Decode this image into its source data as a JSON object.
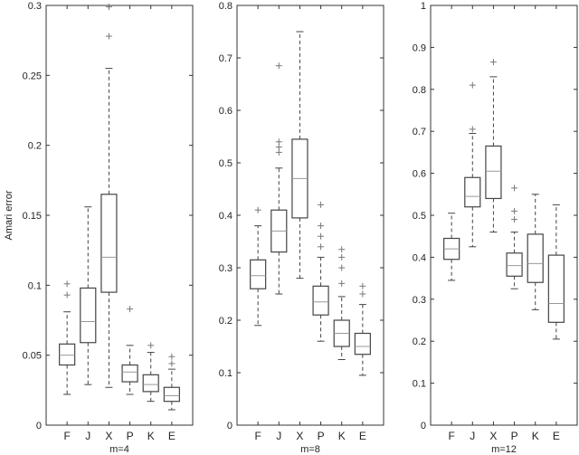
{
  "chart_data": [
    {
      "type": "box",
      "xlabel": "m=4",
      "ylabel": "Amari error",
      "ylim": [
        0,
        0.3
      ],
      "yticks": [
        "0",
        "0.05",
        "0.1",
        "0.15",
        "0.2",
        "0.25",
        "0.3"
      ],
      "categories": [
        "F",
        "J",
        "X",
        "P",
        "K",
        "E"
      ],
      "boxes": [
        {
          "low": 0.022,
          "q1": 0.043,
          "median": 0.05,
          "q3": 0.058,
          "high": 0.081,
          "outliers": [
            0.093,
            0.101
          ]
        },
        {
          "low": 0.029,
          "q1": 0.059,
          "median": 0.074,
          "q3": 0.098,
          "high": 0.156,
          "outliers": []
        },
        {
          "low": 0.027,
          "q1": 0.095,
          "median": 0.12,
          "q3": 0.165,
          "high": 0.255,
          "outliers": [
            0.278,
            0.299
          ]
        },
        {
          "low": 0.022,
          "q1": 0.031,
          "median": 0.038,
          "q3": 0.043,
          "high": 0.057,
          "outliers": [
            0.083
          ]
        },
        {
          "low": 0.017,
          "q1": 0.024,
          "median": 0.029,
          "q3": 0.036,
          "high": 0.052,
          "outliers": [
            0.057
          ]
        },
        {
          "low": 0.011,
          "q1": 0.017,
          "median": 0.021,
          "q3": 0.027,
          "high": 0.04,
          "outliers": [
            0.044,
            0.049
          ]
        }
      ]
    },
    {
      "type": "box",
      "xlabel": "m=8",
      "ylabel": "",
      "ylim": [
        0,
        0.8
      ],
      "yticks": [
        "0",
        "0.1",
        "0.2",
        "0.3",
        "0.4",
        "0.5",
        "0.6",
        "0.7",
        "0.8"
      ],
      "categories": [
        "F",
        "J",
        "X",
        "P",
        "K",
        "E"
      ],
      "boxes": [
        {
          "low": 0.19,
          "q1": 0.26,
          "median": 0.285,
          "q3": 0.315,
          "high": 0.38,
          "outliers": [
            0.41
          ]
        },
        {
          "low": 0.25,
          "q1": 0.33,
          "median": 0.37,
          "q3": 0.41,
          "high": 0.49,
          "outliers": [
            0.52,
            0.53,
            0.54,
            0.685
          ]
        },
        {
          "low": 0.28,
          "q1": 0.395,
          "median": 0.47,
          "q3": 0.545,
          "high": 0.75,
          "outliers": []
        },
        {
          "low": 0.16,
          "q1": 0.21,
          "median": 0.235,
          "q3": 0.265,
          "high": 0.32,
          "outliers": [
            0.34,
            0.36,
            0.38,
            0.42
          ]
        },
        {
          "low": 0.125,
          "q1": 0.15,
          "median": 0.175,
          "q3": 0.2,
          "high": 0.245,
          "outliers": [
            0.27,
            0.3,
            0.32,
            0.335
          ]
        },
        {
          "low": 0.095,
          "q1": 0.135,
          "median": 0.15,
          "q3": 0.175,
          "high": 0.23,
          "outliers": [
            0.25,
            0.265
          ]
        }
      ]
    },
    {
      "type": "box",
      "xlabel": "m=12",
      "ylabel": "",
      "ylim": [
        0,
        1
      ],
      "yticks": [
        "0",
        "0.1",
        "0.2",
        "0.3",
        "0.4",
        "0.5",
        "0.6",
        "0.7",
        "0.8",
        "0.9",
        "1"
      ],
      "categories": [
        "F",
        "J",
        "X",
        "P",
        "K",
        "E"
      ],
      "boxes": [
        {
          "low": 0.345,
          "q1": 0.395,
          "median": 0.42,
          "q3": 0.445,
          "high": 0.505,
          "outliers": []
        },
        {
          "low": 0.425,
          "q1": 0.52,
          "median": 0.545,
          "q3": 0.59,
          "high": 0.695,
          "outliers": [
            0.705,
            0.81
          ]
        },
        {
          "low": 0.46,
          "q1": 0.54,
          "median": 0.605,
          "q3": 0.665,
          "high": 0.83,
          "outliers": [
            0.865
          ]
        },
        {
          "low": 0.325,
          "q1": 0.355,
          "median": 0.38,
          "q3": 0.41,
          "high": 0.46,
          "outliers": [
            0.49,
            0.51,
            0.565
          ]
        },
        {
          "low": 0.275,
          "q1": 0.34,
          "median": 0.385,
          "q3": 0.455,
          "high": 0.55,
          "outliers": []
        },
        {
          "low": 0.205,
          "q1": 0.245,
          "median": 0.29,
          "q3": 0.405,
          "high": 0.525,
          "outliers": []
        }
      ]
    }
  ]
}
